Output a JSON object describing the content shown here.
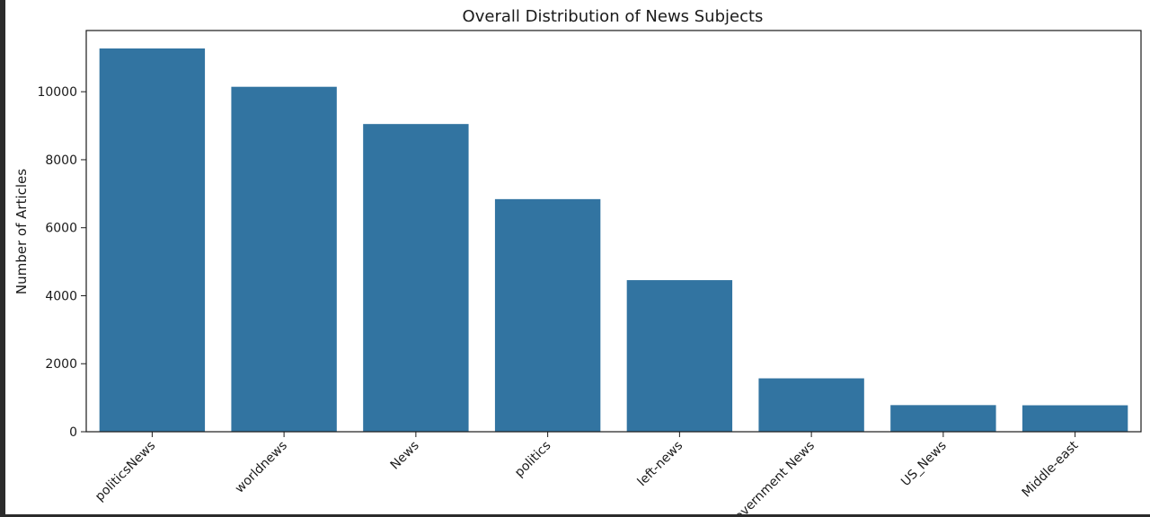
{
  "chart_data": {
    "type": "bar",
    "title": "Overall Distribution of News Subjects",
    "xlabel": "",
    "ylabel": "Number of Articles",
    "categories": [
      "politicsNews",
      "worldnews",
      "News",
      "politics",
      "left-news",
      "Government News",
      "US_News",
      "Middle-east"
    ],
    "values": [
      11272,
      10145,
      9050,
      6841,
      4459,
      1570,
      783,
      778
    ],
    "ylim": [
      0,
      11800
    ],
    "yticks": [
      0,
      2000,
      4000,
      6000,
      8000,
      10000
    ],
    "grid": false,
    "legend": "none",
    "bar_color": "#3274a1"
  }
}
